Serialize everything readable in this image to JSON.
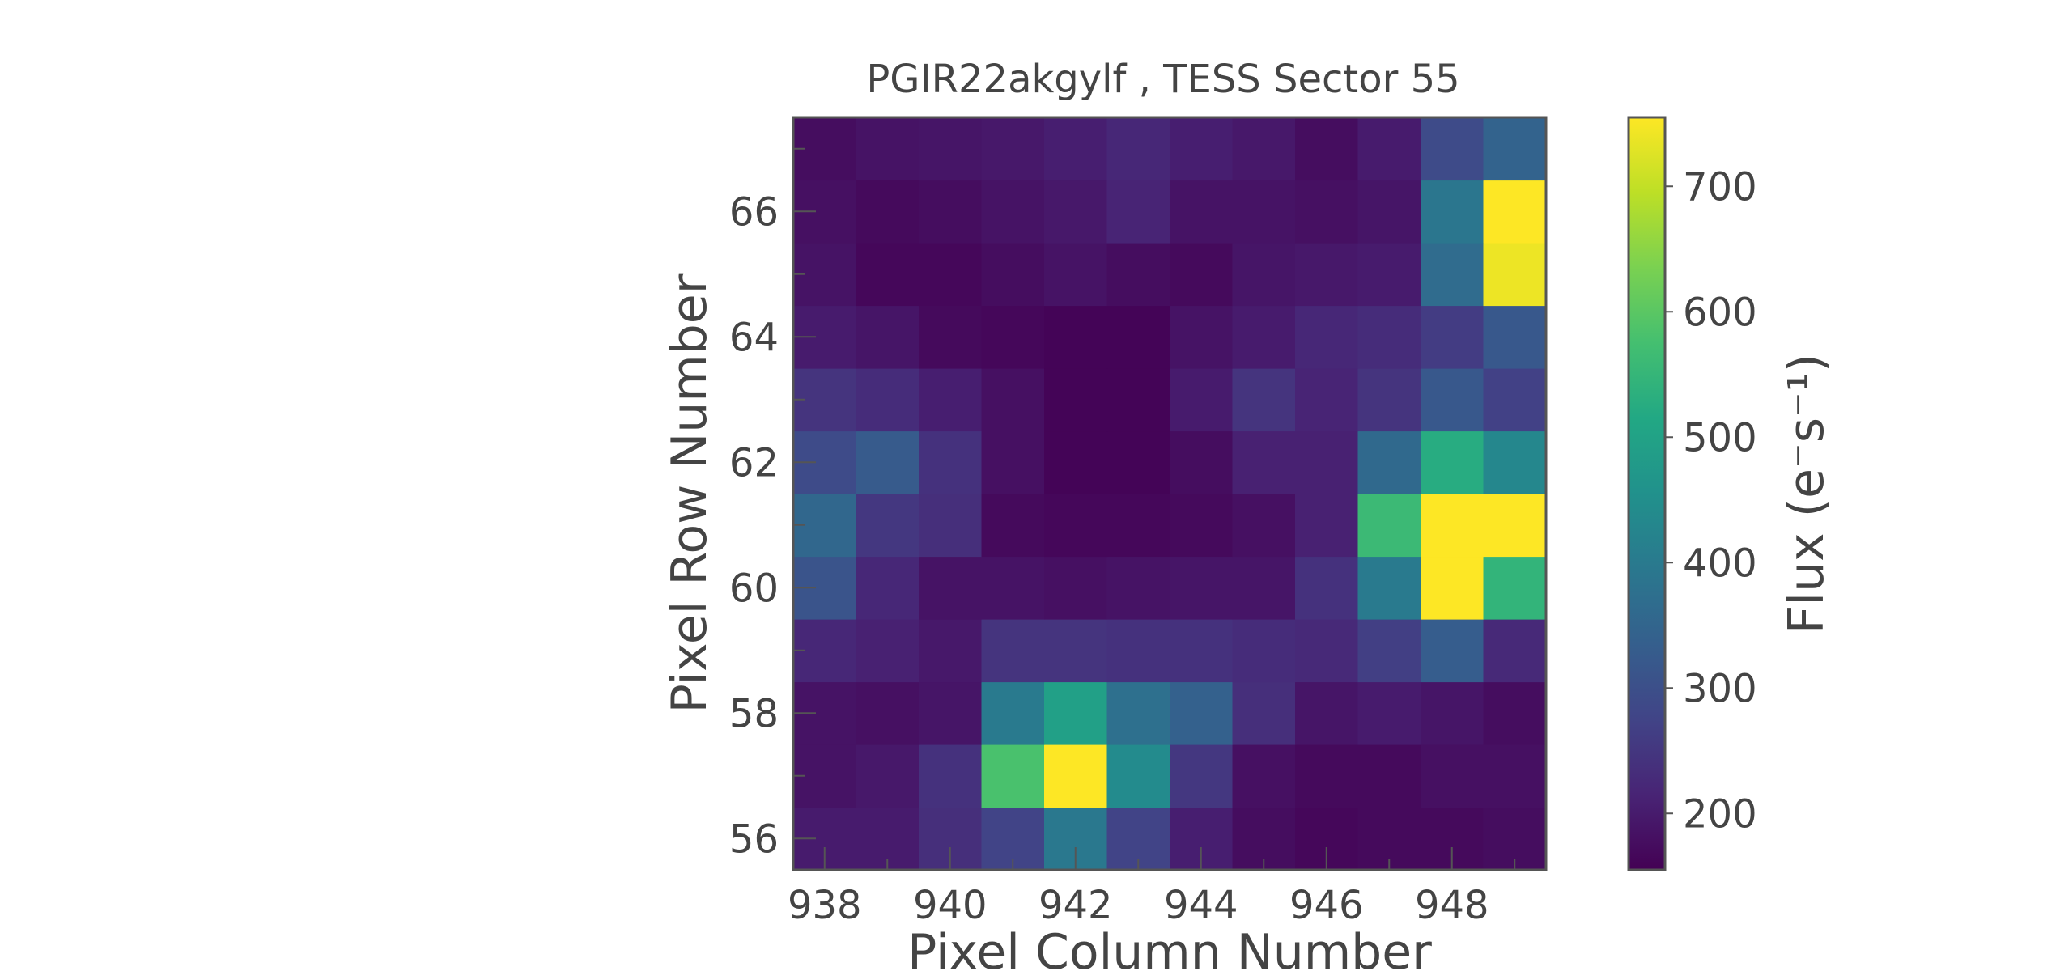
{
  "chart_data": {
    "type": "heatmap",
    "title": "PGIR22akgylf , TESS Sector 55",
    "xlabel": "Pixel Column Number",
    "ylabel": "Pixel Row Number",
    "colorbar_label": "Flux (e⁻s⁻¹)",
    "colormap": "viridis",
    "x_start": 937.5,
    "y_start": 55.5,
    "xlim": [
      937.5,
      949.5
    ],
    "ylim": [
      55.5,
      67.5
    ],
    "clim": [
      155,
      755
    ],
    "x_ticks": [
      938,
      940,
      942,
      944,
      946,
      948
    ],
    "y_ticks": [
      56,
      58,
      60,
      62,
      64,
      66
    ],
    "colorbar_ticks": [
      200,
      300,
      400,
      500,
      600,
      700
    ],
    "grid": false,
    "values": [
      [
        200,
        200,
        235,
        275,
        395,
        275,
        205,
        175,
        165,
        170,
        170,
        175
      ],
      [
        185,
        195,
        240,
        580,
        755,
        440,
        250,
        180,
        170,
        170,
        180,
        180
      ],
      [
        185,
        180,
        190,
        400,
        495,
        375,
        340,
        235,
        190,
        200,
        190,
        175
      ],
      [
        220,
        210,
        195,
        245,
        245,
        240,
        240,
        230,
        225,
        265,
        330,
        225
      ],
      [
        310,
        220,
        185,
        185,
        180,
        185,
        190,
        190,
        240,
        400,
        755,
        545
      ],
      [
        355,
        250,
        235,
        170,
        165,
        165,
        170,
        180,
        210,
        560,
        755,
        755
      ],
      [
        290,
        325,
        240,
        180,
        160,
        160,
        175,
        210,
        210,
        360,
        525,
        430
      ],
      [
        245,
        230,
        205,
        180,
        160,
        160,
        200,
        245,
        215,
        245,
        320,
        270
      ],
      [
        200,
        190,
        170,
        165,
        160,
        160,
        185,
        200,
        220,
        230,
        260,
        320
      ],
      [
        185,
        165,
        165,
        175,
        185,
        175,
        170,
        190,
        195,
        200,
        365,
        740
      ],
      [
        180,
        170,
        175,
        185,
        195,
        215,
        185,
        185,
        180,
        190,
        390,
        755
      ],
      [
        175,
        185,
        190,
        195,
        205,
        220,
        205,
        195,
        175,
        200,
        290,
        345
      ]
    ]
  }
}
